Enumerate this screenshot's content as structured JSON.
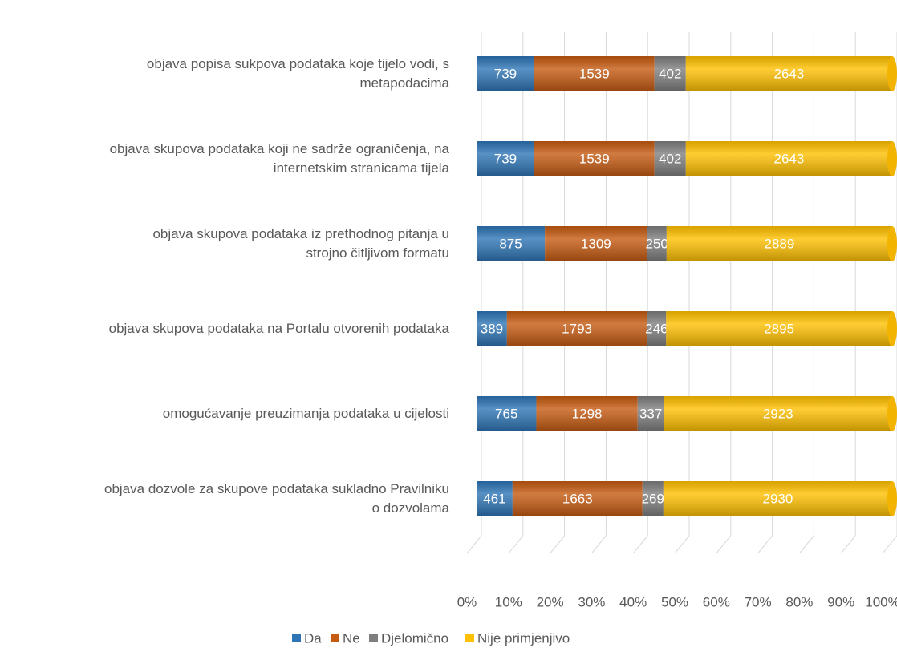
{
  "chart_data": {
    "type": "bar",
    "orientation": "horizontal",
    "stacking": "percent",
    "categories": [
      "objava popisa sukpova podataka koje tijelo vodi, s\nmetapodacima",
      "objava skupova podataka koji ne sadrže ograničenja, na\ninternetskim stranicama tijela",
      "objava skupova podataka iz prethodnog pitanja u\nstrojno čitljivom formatu",
      "objava skupova podataka na Portalu otvorenih podataka",
      "omogućavanje preuzimanja podataka u cijelosti",
      "objava dozvole za skupove podataka sukladno Pravilniku\no dozvolama"
    ],
    "series": [
      {
        "name": "Da",
        "color": "#2e75b6",
        "values": [
          739,
          739,
          875,
          389,
          765,
          461
        ]
      },
      {
        "name": "Ne",
        "color": "#c55a11",
        "values": [
          1539,
          1539,
          1309,
          1793,
          1298,
          1663
        ]
      },
      {
        "name": "Djelomično",
        "color": "#7f7f7f",
        "values": [
          402,
          402,
          250,
          246,
          337,
          269
        ]
      },
      {
        "name": "Nije primjenjivo",
        "color": "#ffc000",
        "values": [
          2643,
          2643,
          2889,
          2895,
          2923,
          2930
        ]
      }
    ],
    "xlim": [
      0,
      100
    ],
    "xticks": [
      {
        "value": 0,
        "label": "0%"
      },
      {
        "value": 10,
        "label": "10%"
      },
      {
        "value": 20,
        "label": "20%"
      },
      {
        "value": 30,
        "label": "30%"
      },
      {
        "value": 40,
        "label": "40%"
      },
      {
        "value": 50,
        "label": "50%"
      },
      {
        "value": 60,
        "label": "60%"
      },
      {
        "value": 70,
        "label": "70%"
      },
      {
        "value": 80,
        "label": "80%"
      },
      {
        "value": 90,
        "label": "90%"
      },
      {
        "value": 100,
        "label": "100%"
      }
    ],
    "grid": true,
    "legend": "bottom"
  }
}
